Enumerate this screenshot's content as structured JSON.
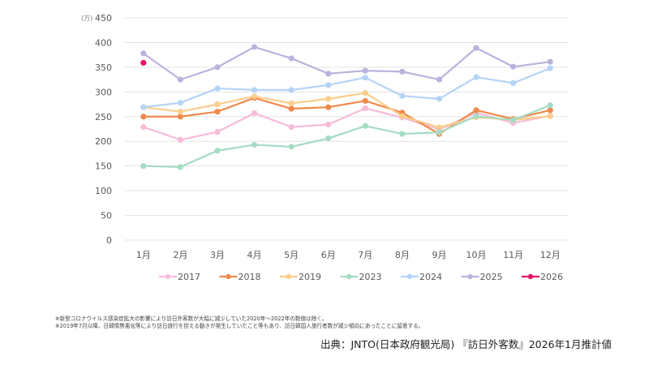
{
  "chart_data": {
    "type": "line",
    "title": "",
    "xlabel": "",
    "ylabel": "",
    "unit_label": "(万)",
    "categories": [
      "1月",
      "2月",
      "3月",
      "4月",
      "5月",
      "6月",
      "7月",
      "8月",
      "9月",
      "10月",
      "11月",
      "12月"
    ],
    "ylim": [
      0,
      450
    ],
    "yticks": [
      0,
      50,
      100,
      150,
      200,
      250,
      300,
      350,
      400,
      450
    ],
    "grid": true,
    "legend_position": "bottom",
    "series": [
      {
        "name": "2017",
        "color": "#F7BBD9",
        "values": [
          229,
          203,
          219,
          257,
          229,
          234,
          267,
          248,
          224,
          258,
          237,
          252
        ]
      },
      {
        "name": "2018",
        "color": "#EE8A4C",
        "values": [
          250,
          250,
          260,
          288,
          266,
          269,
          282,
          258,
          215,
          263,
          245,
          263
        ]
      },
      {
        "name": "2019",
        "color": "#F9CD8C",
        "values": [
          269,
          260,
          275,
          291,
          277,
          286,
          298,
          251,
          228,
          249,
          243,
          251
        ]
      },
      {
        "name": "2023",
        "color": "#A5DCC4",
        "values": [
          150,
          148,
          181,
          193,
          189,
          206,
          231,
          215,
          218,
          251,
          243,
          273
        ]
      },
      {
        "name": "2024",
        "color": "#B4D3F7",
        "values": [
          269,
          278,
          307,
          304,
          304,
          314,
          329,
          292,
          286,
          330,
          318,
          348
        ]
      },
      {
        "name": "2025",
        "color": "#BBB3DE",
        "values": [
          378,
          325,
          350,
          391,
          368,
          337,
          343,
          341,
          325,
          389,
          351,
          361
        ]
      },
      {
        "name": "2026",
        "color": "#E8176A",
        "values": [
          359,
          null,
          null,
          null,
          null,
          null,
          null,
          null,
          null,
          null,
          null,
          null
        ]
      }
    ]
  },
  "notes": [
    "※新型コロナウイルス感染症拡大の影響により訪日外客数が大幅に減少していた2020年～2022年の数値は除く。",
    "※2019年7月以降、日韓情勢悪化等により訪日旅行を控える動きが発生していたこと等もあり、訪日韓国人旅行者数が減少傾向にあったことに留意する。"
  ],
  "source": "出典：JNTO(日本政府観光局) 『訪日外客数』2026年1月推計値"
}
